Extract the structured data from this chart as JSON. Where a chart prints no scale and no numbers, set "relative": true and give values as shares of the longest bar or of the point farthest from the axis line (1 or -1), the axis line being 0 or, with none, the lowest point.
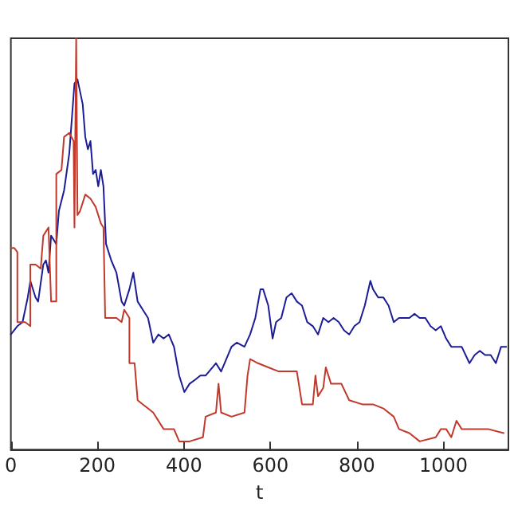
{
  "chart_data": {
    "type": "line",
    "xlabel": "t",
    "relative": true,
    "xlim": [
      0,
      1150
    ],
    "xticks": [
      0,
      200,
      400,
      600,
      800,
      1000
    ],
    "marker": "none",
    "line_style": "solid",
    "series": [
      {
        "color": "#1c1c96",
        "x": [
          0,
          15,
          27,
          39,
          45,
          57,
          63,
          75,
          81,
          87,
          93,
          105,
          111,
          123,
          135,
          147,
          154,
          160,
          166,
          172,
          178,
          184,
          190,
          196,
          202,
          208,
          214,
          220,
          232,
          244,
          256,
          262,
          274,
          283,
          293,
          305,
          317,
          329,
          341,
          353,
          365,
          377,
          389,
          401,
          413,
          426,
          438,
          450,
          474,
          486,
          498,
          510,
          522,
          540,
          553,
          565,
          577,
          583,
          595,
          605,
          613,
          625,
          637,
          649,
          661,
          673,
          685,
          698,
          710,
          722,
          734,
          746,
          758,
          770,
          782,
          794,
          806,
          818,
          831,
          837,
          849,
          861,
          873,
          885,
          897,
          909,
          921,
          933,
          945,
          958,
          970,
          982,
          994,
          1006,
          1018,
          1030,
          1042,
          1060,
          1072,
          1084,
          1096,
          1109,
          1121,
          1133,
          1145
        ],
        "values": [
          0.28,
          0.3,
          0.31,
          0.37,
          0.41,
          0.37,
          0.36,
          0.45,
          0.46,
          0.43,
          0.52,
          0.5,
          0.58,
          0.63,
          0.72,
          0.89,
          0.9,
          0.87,
          0.84,
          0.76,
          0.73,
          0.75,
          0.67,
          0.68,
          0.64,
          0.68,
          0.64,
          0.5,
          0.46,
          0.43,
          0.36,
          0.35,
          0.39,
          0.43,
          0.36,
          0.34,
          0.32,
          0.26,
          0.28,
          0.27,
          0.28,
          0.25,
          0.18,
          0.14,
          0.16,
          0.17,
          0.18,
          0.18,
          0.21,
          0.19,
          0.22,
          0.25,
          0.26,
          0.25,
          0.28,
          0.32,
          0.39,
          0.39,
          0.35,
          0.27,
          0.31,
          0.32,
          0.37,
          0.38,
          0.36,
          0.35,
          0.31,
          0.3,
          0.28,
          0.32,
          0.31,
          0.32,
          0.31,
          0.29,
          0.28,
          0.3,
          0.31,
          0.35,
          0.41,
          0.39,
          0.37,
          0.37,
          0.35,
          0.31,
          0.32,
          0.32,
          0.32,
          0.33,
          0.32,
          0.32,
          0.3,
          0.29,
          0.3,
          0.27,
          0.25,
          0.25,
          0.25,
          0.21,
          0.23,
          0.24,
          0.23,
          0.23,
          0.21,
          0.25,
          0.25
        ]
      },
      {
        "color": "#c0392b",
        "x": [
          0,
          8,
          15,
          15,
          33,
          45,
          45,
          57,
          69,
          75,
          81,
          87,
          93,
          105,
          105,
          117,
          123,
          135,
          145,
          147,
          151,
          154,
          160,
          172,
          184,
          196,
          208,
          214,
          218,
          232,
          244,
          256,
          262,
          274,
          274,
          286,
          293,
          305,
          317,
          329,
          353,
          377,
          389,
          413,
          444,
          450,
          474,
          480,
          486,
          510,
          540,
          547,
          553,
          571,
          595,
          619,
          661,
          673,
          698,
          704,
          710,
          722,
          728,
          740,
          764,
          782,
          812,
          837,
          861,
          885,
          897,
          921,
          945,
          982,
          994,
          1006,
          1018,
          1030,
          1042,
          1055,
          1103,
          1139
        ],
        "values": [
          0.49,
          0.49,
          0.48,
          0.31,
          0.31,
          0.3,
          0.45,
          0.45,
          0.44,
          0.52,
          0.53,
          0.54,
          0.36,
          0.36,
          0.67,
          0.68,
          0.76,
          0.77,
          0.75,
          0.54,
          1.0,
          0.57,
          0.58,
          0.62,
          0.61,
          0.59,
          0.55,
          0.54,
          0.32,
          0.32,
          0.32,
          0.31,
          0.34,
          0.32,
          0.21,
          0.21,
          0.12,
          0.11,
          0.1,
          0.09,
          0.05,
          0.05,
          0.02,
          0.02,
          0.03,
          0.08,
          0.09,
          0.16,
          0.09,
          0.08,
          0.09,
          0.18,
          0.22,
          0.21,
          0.2,
          0.19,
          0.19,
          0.11,
          0.11,
          0.18,
          0.13,
          0.15,
          0.2,
          0.16,
          0.16,
          0.12,
          0.11,
          0.11,
          0.1,
          0.08,
          0.05,
          0.04,
          0.02,
          0.03,
          0.05,
          0.05,
          0.03,
          0.07,
          0.05,
          0.05,
          0.05,
          0.04
        ]
      }
    ]
  }
}
